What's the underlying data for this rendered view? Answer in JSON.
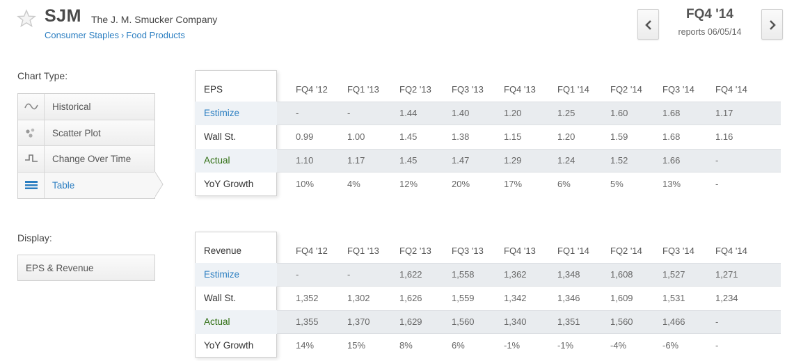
{
  "header": {
    "ticker": "SJM",
    "company": "The J. M. Smucker Company",
    "sector": "Consumer Staples",
    "separator": "›",
    "industry": "Food Products",
    "period": "FQ4 '14",
    "reports": "reports 06/05/14"
  },
  "sidebar": {
    "chart_type_label": "Chart Type:",
    "chart_types": [
      {
        "label": "Historical",
        "icon": "wave-icon"
      },
      {
        "label": "Scatter Plot",
        "icon": "scatter-icon"
      },
      {
        "label": "Change Over Time",
        "icon": "step-icon"
      },
      {
        "label": "Table",
        "icon": "table-icon",
        "active": true
      }
    ],
    "display_label": "Display:",
    "display_value": "EPS & Revenue"
  },
  "colors": {
    "link_blue": "#2b7ec1",
    "actual_green": "#2f6e12",
    "shade": "#e9ecef"
  },
  "eps_table": {
    "title": "EPS",
    "periods": [
      "FQ4 '12",
      "FQ1 '13",
      "FQ2 '13",
      "FQ3 '13",
      "FQ4 '13",
      "FQ1 '14",
      "FQ2 '14",
      "FQ3 '14",
      "FQ4 '14"
    ],
    "rows": [
      {
        "label": "Estimize",
        "values": [
          "-",
          "-",
          "1.44",
          "1.40",
          "1.20",
          "1.25",
          "1.60",
          "1.68",
          "1.17"
        ]
      },
      {
        "label": "Wall St.",
        "values": [
          "0.99",
          "1.00",
          "1.45",
          "1.38",
          "1.15",
          "1.20",
          "1.59",
          "1.68",
          "1.16"
        ]
      },
      {
        "label": "Actual",
        "values": [
          "1.10",
          "1.17",
          "1.45",
          "1.47",
          "1.29",
          "1.24",
          "1.52",
          "1.66",
          "-"
        ]
      },
      {
        "label": "YoY Growth",
        "values": [
          "10%",
          "4%",
          "12%",
          "20%",
          "17%",
          "6%",
          "5%",
          "13%",
          "-"
        ]
      }
    ]
  },
  "revenue_table": {
    "title": "Revenue",
    "periods": [
      "FQ4 '12",
      "FQ1 '13",
      "FQ2 '13",
      "FQ3 '13",
      "FQ4 '13",
      "FQ1 '14",
      "FQ2 '14",
      "FQ3 '14",
      "FQ4 '14"
    ],
    "rows": [
      {
        "label": "Estimize",
        "values": [
          "-",
          "-",
          "1,622",
          "1,558",
          "1,362",
          "1,348",
          "1,608",
          "1,527",
          "1,271"
        ]
      },
      {
        "label": "Wall St.",
        "values": [
          "1,352",
          "1,302",
          "1,626",
          "1,559",
          "1,342",
          "1,346",
          "1,609",
          "1,531",
          "1,234"
        ]
      },
      {
        "label": "Actual",
        "values": [
          "1,355",
          "1,370",
          "1,629",
          "1,560",
          "1,340",
          "1,351",
          "1,560",
          "1,466",
          "-"
        ]
      },
      {
        "label": "YoY Growth",
        "values": [
          "14%",
          "15%",
          "8%",
          "6%",
          "-1%",
          "-1%",
          "-4%",
          "-6%",
          "-"
        ]
      }
    ]
  }
}
